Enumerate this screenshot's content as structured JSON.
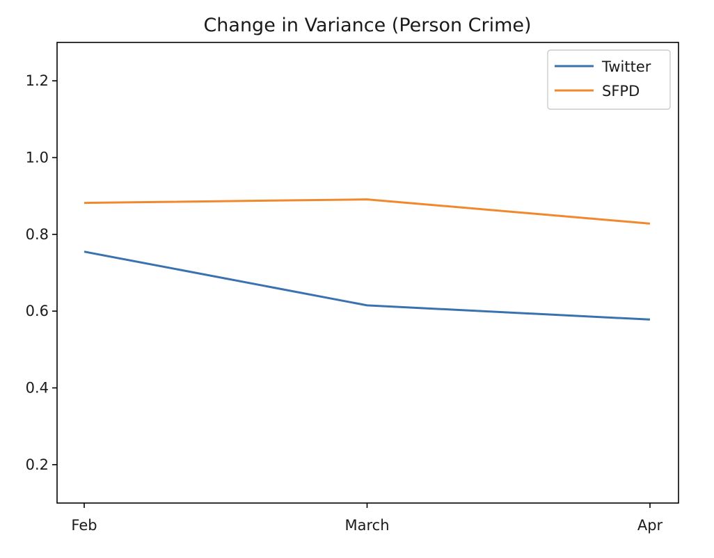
{
  "chart_data": {
    "type": "line",
    "title": "Change in Variance (Person Crime)",
    "xlabel": "",
    "ylabel": "",
    "categories": [
      "Feb",
      "March",
      "Apr"
    ],
    "ylim": [
      0.1,
      1.3
    ],
    "yticks": [
      0.2,
      0.4,
      0.6,
      0.8,
      1.0,
      1.2
    ],
    "ytick_labels": [
      "0.2",
      "0.4",
      "0.6",
      "0.8",
      "1.0",
      "1.2"
    ],
    "grid": false,
    "legend_position": "top-right",
    "series": [
      {
        "name": "Twitter",
        "color": "#3a72b0",
        "values": [
          0.755,
          0.615,
          0.578
        ]
      },
      {
        "name": "SFPD",
        "color": "#f0882e",
        "values": [
          0.882,
          0.891,
          0.828
        ]
      }
    ]
  }
}
